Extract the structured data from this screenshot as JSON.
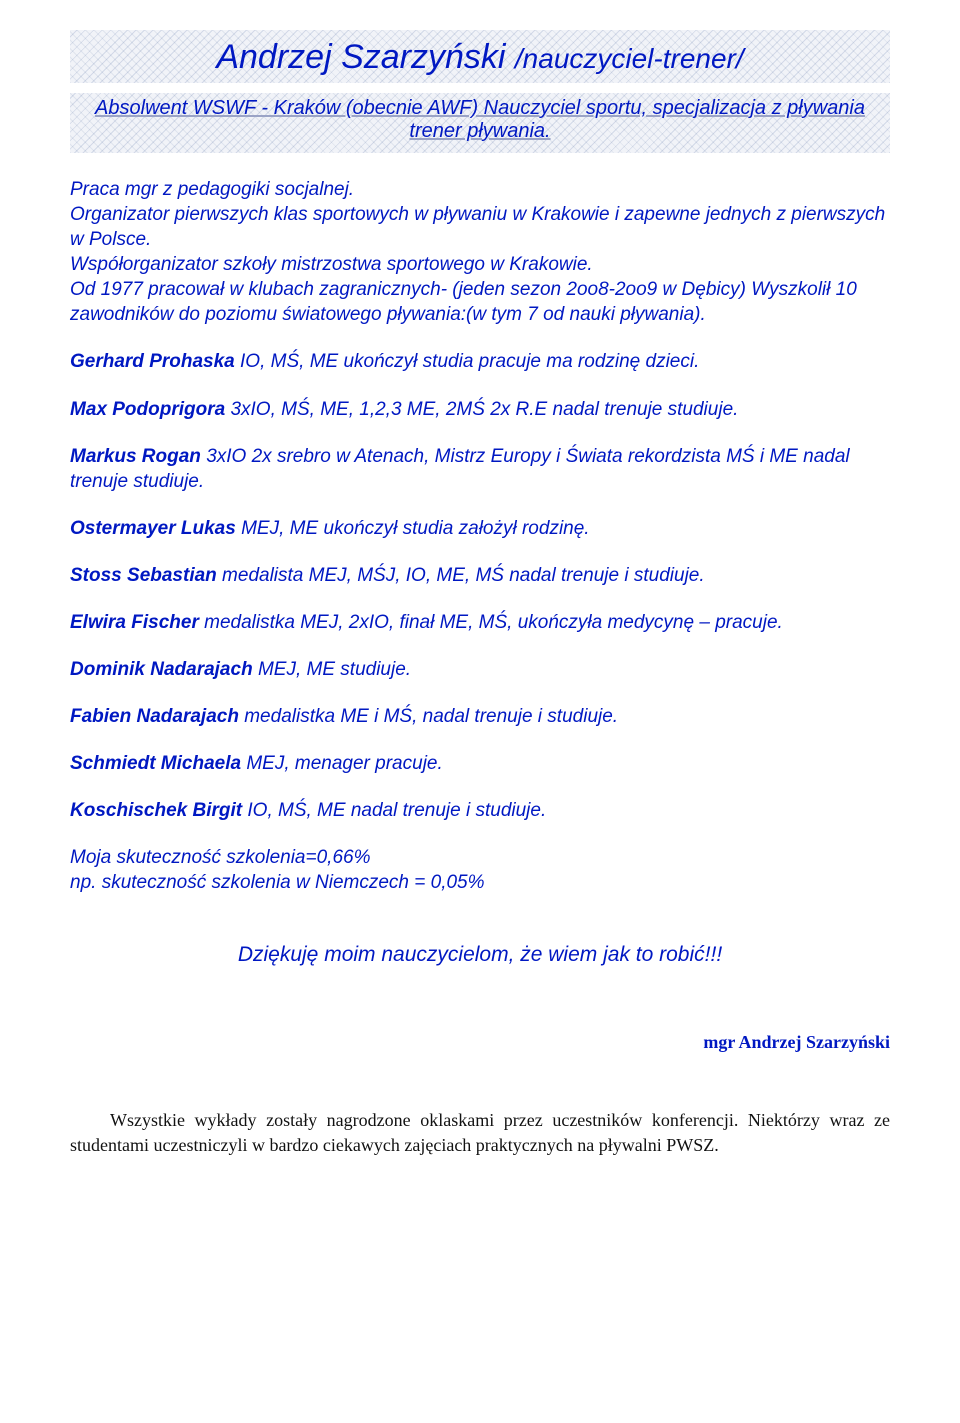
{
  "title": {
    "main": "Andrzej Szarzyński ",
    "sub": "/nauczyciel-trener/"
  },
  "subtitle": "Absolwent WSWF - Kraków (obecnie AWF) Nauczyciel sportu, specjalizacja z pływania trener pływania.",
  "intro": "Praca mgr z pedagogiki socjalnej.\nOrganizator pierwszych klas sportowych w pływaniu w Krakowie i zapewne jednych z pierwszych w Polsce.\nWspółorganizator szkoły mistrzostwa sportowego w Krakowie.\nOd 1977 pracował w klubach zagranicznych- (jeden sezon 2oo8-2oo9 w Dębicy) Wyszkolił 10 zawodników do poziomu światowego pływania:(w tym 7 od nauki pływania).",
  "entries": [
    {
      "name": "Gerhard Prohaska",
      "rest": " IO, MŚ, ME ukończył studia pracuje ma rodzinę dzieci."
    },
    {
      "name": "Max Podoprigora",
      "rest": " 3xIO, MŚ, ME, 1,2,3 ME, 2MŚ  2x R.E nadal trenuje studiuje."
    },
    {
      "name": "Markus Rogan",
      "rest": " 3xIO 2x srebro w Atenach, Mistrz Europy i Świata rekordzista MŚ i ME nadal trenuje studiuje."
    },
    {
      "name": "Ostermayer Lukas",
      "rest": " MEJ, ME ukończył studia założył rodzinę."
    },
    {
      "name": "Stoss Sebastian",
      "rest": " medalista MEJ, MŚJ, IO, ME, MŚ  nadal trenuje i studiuje."
    },
    {
      "name": "Elwira Fischer",
      "rest": " medalistka MEJ, 2xIO, finał ME, MŚ, ukończyła medycynę – pracuje."
    },
    {
      "name": "Dominik Nadarajach",
      "rest": " MEJ, ME studiuje."
    },
    {
      "name": "Fabien Nadarajach",
      "rest": " medalistka ME i MŚ, nadal trenuje i studiuje."
    },
    {
      "name": "Schmiedt Michaela",
      "rest": " MEJ, menager pracuje."
    },
    {
      "name": "Koschischek Birgit",
      "rest": " IO, MŚ, ME nadal trenuje i studiuje."
    }
  ],
  "efficacy": "Moja skuteczność szkolenia=0,66%\nnp. skuteczność szkolenia w Niemczech = 0,05%",
  "thanks": "Dziękuję moim nauczycielom, że wiem jak to robić!!!",
  "signature": "mgr Andrzej Szarzyński",
  "footer": "Wszystkie wykłady zostały nagrodzone oklaskami przez uczestników konferencji. Niektórzy wraz ze studentami uczestniczyli w bardzo ciekawych zajęciach praktycznych na pływalni PWSZ.",
  "colors": {
    "link_blue": "#0018c2",
    "banner_bg_light": "#f1f3f8",
    "banner_bg_line": "#dfe4ee",
    "footer_text": "#111111",
    "page_bg": "#ffffff"
  }
}
